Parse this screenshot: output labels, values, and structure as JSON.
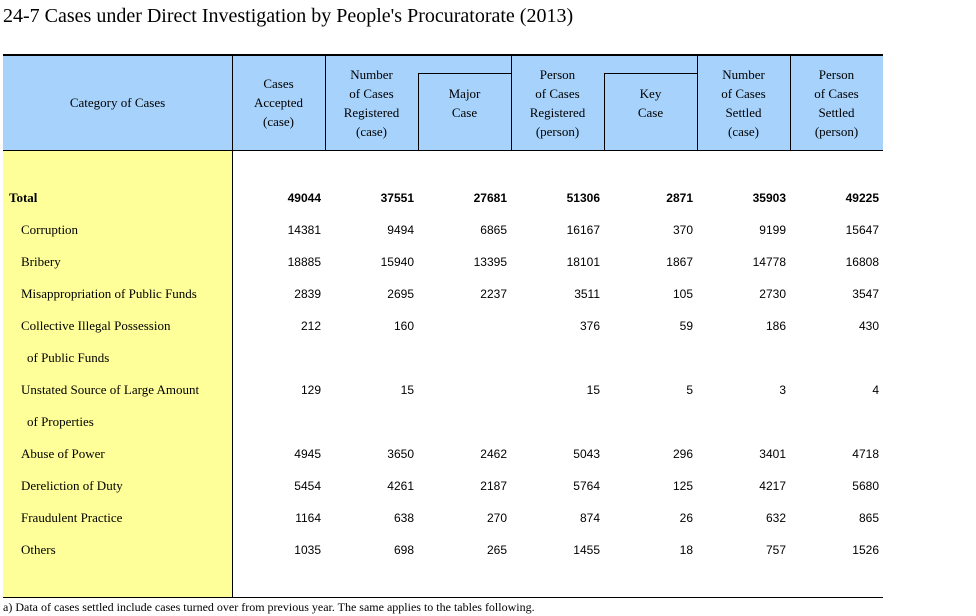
{
  "title": "24-7  Cases under Direct Investigation by People's Procuratorate (2013)",
  "table": {
    "header": [
      [
        "Category of Cases"
      ],
      [
        "Cases",
        "Accepted",
        "(case)"
      ],
      [
        "Number",
        "of Cases",
        "Registered",
        "(case)"
      ],
      [
        "Major",
        "Case"
      ],
      [
        "Person",
        "of Cases",
        "Registered",
        "(person)"
      ],
      [
        "Key",
        "Case"
      ],
      [
        "Number",
        "of Cases",
        "Settled",
        "(case)"
      ],
      [
        "Person",
        "of Cases",
        "Settled",
        "(person)"
      ]
    ],
    "rows": [
      {
        "label": [
          "Total"
        ],
        "values": [
          49044,
          37551,
          27681,
          51306,
          2871,
          35903,
          49225
        ]
      },
      {
        "label": [
          "Corruption"
        ],
        "values": [
          14381,
          9494,
          6865,
          16167,
          370,
          9199,
          15647
        ]
      },
      {
        "label": [
          "Bribery"
        ],
        "values": [
          18885,
          15940,
          13395,
          18101,
          1867,
          14778,
          16808
        ]
      },
      {
        "label": [
          "Misappropriation of Public Funds"
        ],
        "values": [
          2839,
          2695,
          2237,
          3511,
          105,
          2730,
          3547
        ]
      },
      {
        "label": [
          "Collective Illegal Possession",
          "of Public Funds"
        ],
        "values": [
          212,
          160,
          null,
          376,
          59,
          186,
          430
        ]
      },
      {
        "label": [
          "Unstated Source of Large Amount",
          "of Properties"
        ],
        "values": [
          129,
          15,
          null,
          15,
          5,
          3,
          4
        ]
      },
      {
        "label": [
          "Abuse of Power"
        ],
        "values": [
          4945,
          3650,
          2462,
          5043,
          296,
          3401,
          4718
        ]
      },
      {
        "label": [
          "Dereliction of Duty"
        ],
        "values": [
          5454,
          4261,
          2187,
          5764,
          125,
          4217,
          5680
        ]
      },
      {
        "label": [
          "Fraudulent Practice"
        ],
        "values": [
          1164,
          638,
          270,
          874,
          26,
          632,
          865
        ]
      },
      {
        "label": [
          "Others"
        ],
        "values": [
          1035,
          698,
          265,
          1455,
          18,
          757,
          1526
        ]
      }
    ]
  },
  "note": "a) Data of cases settled include cases turned over from previous year. The same applies to the tables following."
}
